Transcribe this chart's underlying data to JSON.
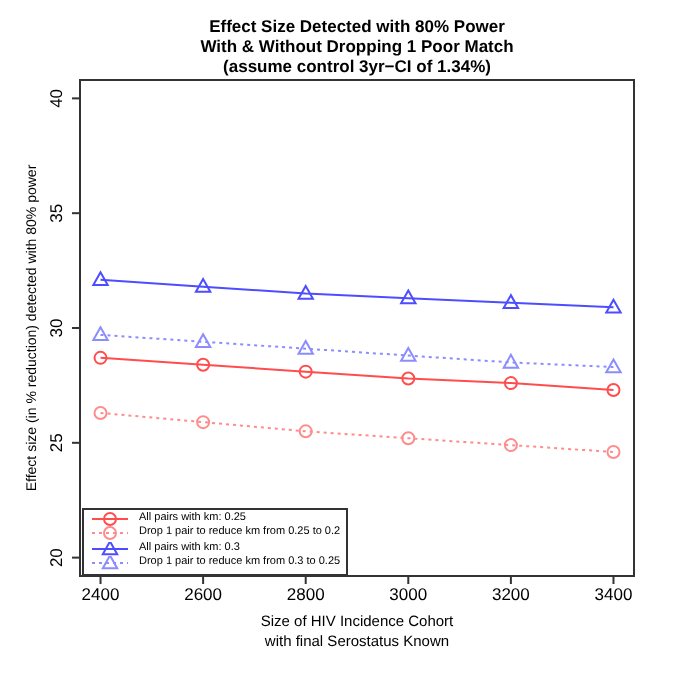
{
  "chart_data": {
    "type": "line",
    "title": "Effect Size Detected with 80% Power\nWith & Without Dropping 1 Poor Match\n(assume control 3yr−CI of 1.34%)",
    "xlabel": "Size of HIV Incidence Cohort\nwith final Serostatus Known",
    "ylabel": "Effect size (in % reduction) detected with 80% power",
    "x": [
      2400,
      2600,
      2800,
      3000,
      3200,
      3400
    ],
    "series": [
      {
        "name": "All pairs with km: 0.25",
        "color": "#ff4d4d",
        "marker": "circle",
        "line_style": "solid",
        "values": [
          28.7,
          28.4,
          28.1,
          27.8,
          27.6,
          27.3
        ]
      },
      {
        "name": "Drop 1 pair to reduce km from 0.25 to 0.2",
        "color": "#ff8c8c",
        "marker": "circle",
        "line_style": "dotted",
        "values": [
          26.3,
          25.9,
          25.5,
          25.2,
          24.9,
          24.6
        ]
      },
      {
        "name": "All pairs with km: 0.3",
        "color": "#4d4dff",
        "marker": "triangle",
        "line_style": "solid",
        "values": [
          32.1,
          31.8,
          31.5,
          31.3,
          31.1,
          30.9
        ]
      },
      {
        "name": "Drop 1 pair to reduce km from 0.3 to 0.25",
        "color": "#8c8cff",
        "marker": "triangle",
        "line_style": "dotted",
        "values": [
          29.7,
          29.4,
          29.1,
          28.8,
          28.5,
          28.3
        ]
      }
    ],
    "xlim": [
      2360,
      3440
    ],
    "xticks": [
      2400,
      2600,
      2800,
      3000,
      3200,
      3400
    ],
    "ylim": [
      19.2,
      40.8
    ],
    "yticks": [
      20,
      25,
      30,
      35,
      40
    ],
    "grid": false,
    "legend": "bottom left"
  }
}
